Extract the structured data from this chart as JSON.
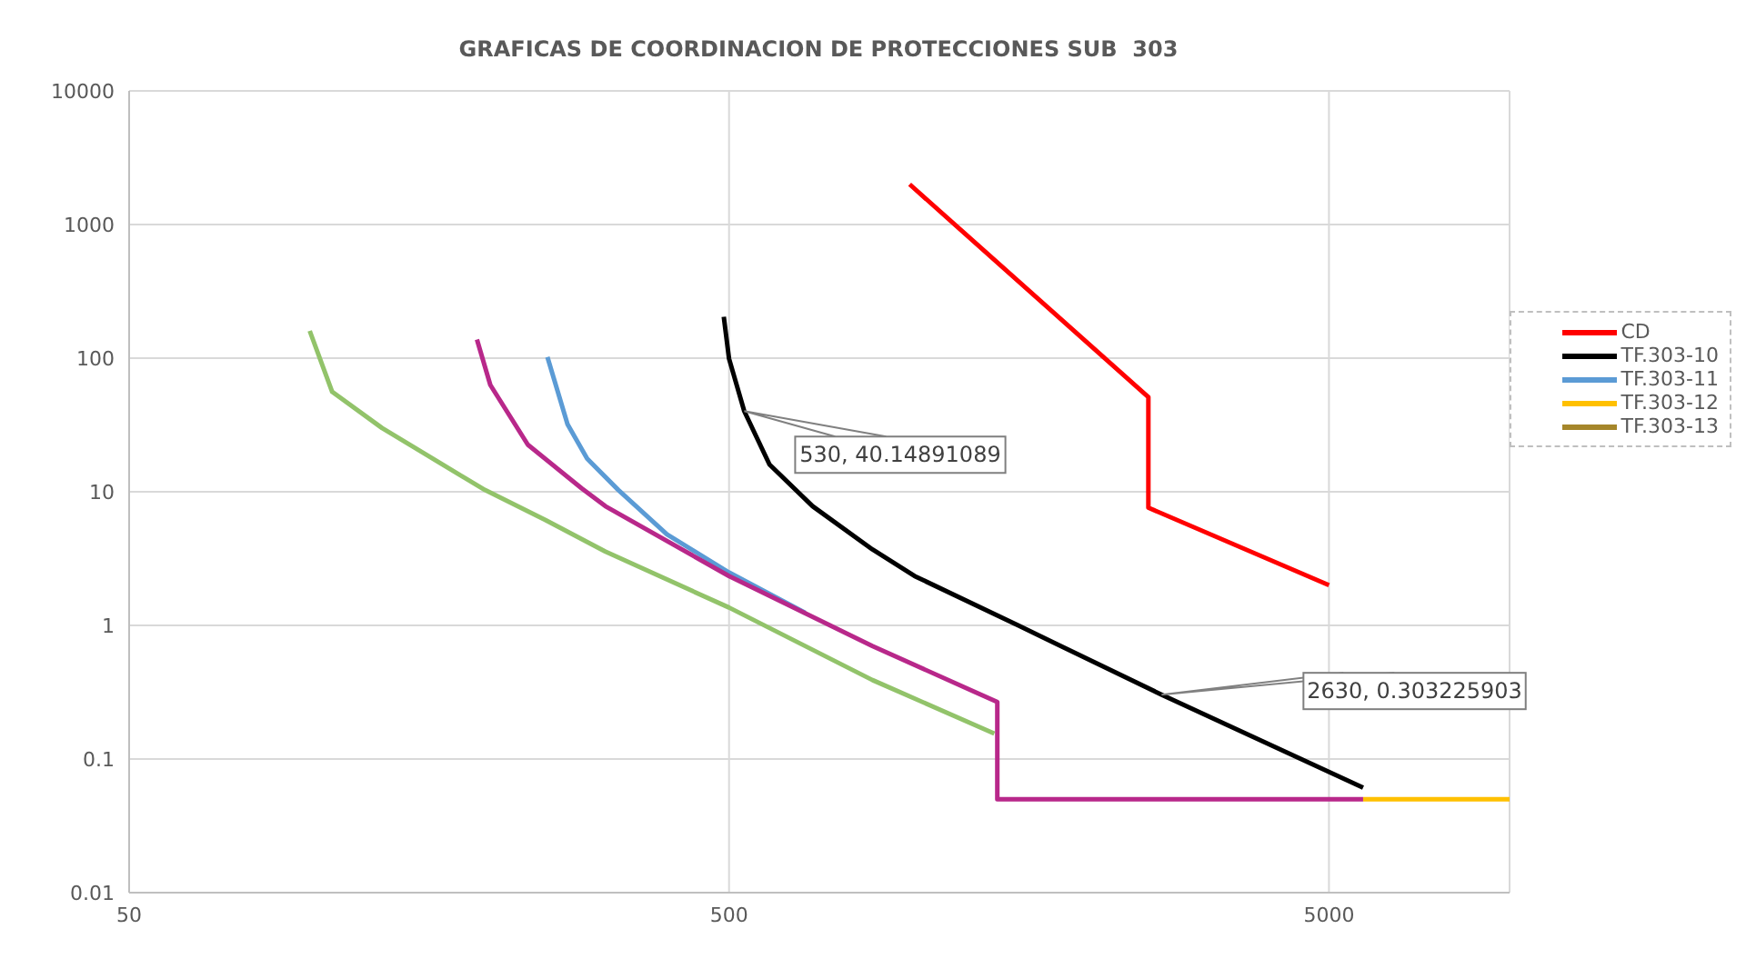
{
  "chart_data": {
    "type": "line",
    "title": "GRAFICAS DE COORDINACION DE PROTECCIONES SUB  303",
    "log": "xy",
    "xlim": [
      50,
      10000
    ],
    "xticks": [
      50,
      500,
      5000
    ],
    "ylim": [
      0.01,
      10000
    ],
    "yticks": [
      0.01,
      0.1,
      1,
      10,
      100,
      1000,
      10000
    ],
    "grid": true,
    "legend": "right",
    "line_style": "solid",
    "series": [
      {
        "name": "CD",
        "color": "#ff0000",
        "x": [
          1000,
          2500,
          2500,
          5000
        ],
        "values": [
          2000,
          51,
          7.6,
          2
        ]
      },
      {
        "name": "TF.303-10",
        "color": "#000000",
        "x": [
          490,
          500,
          530,
          584,
          689,
          867,
          1019,
          1517,
          1742,
          2630,
          5700
        ],
        "values": [
          204,
          99,
          40.15,
          16,
          7.8,
          3.7,
          2.34,
          1,
          0.74,
          0.303,
          0.061
        ]
      },
      {
        "name": "TF.303-11",
        "color": "#5b9bd5",
        "x": [
          249,
          269,
          290,
          327,
          394,
          500,
          670
        ],
        "values": [
          102,
          32,
          17.7,
          10.3,
          4.8,
          2.49,
          1.24
        ]
      },
      {
        "name": "TF.303-12",
        "color": "#ffc000",
        "x": [
          5700,
          10000
        ],
        "values": [
          0.05,
          0.05
        ]
      },
      {
        "name": "TF.303-13",
        "color": "#a5862a"
      },
      {
        "color": "#92c36a",
        "x": [
          100,
          109,
          132,
          155,
          196,
          247,
          311,
          500,
          867,
          1384
        ],
        "values": [
          160,
          56,
          30,
          19.4,
          10.3,
          6.15,
          3.57,
          1.36,
          0.39,
          0.155
        ]
      },
      {
        "color": "#b8288a",
        "x": [
          190,
          200,
          231,
          284,
          311,
          500,
          867,
          1400,
          1400,
          5700
        ],
        "values": [
          138,
          63,
          22.5,
          10.6,
          7.8,
          2.34,
          0.7,
          0.267,
          0.05,
          0.05
        ]
      }
    ],
    "annotations": [
      {
        "text": "530, 40.14891089",
        "x": 530,
        "y": 40.14891089
      },
      {
        "text": "2630, 0.303225903",
        "x": 2630,
        "y": 0.303225903
      }
    ]
  }
}
